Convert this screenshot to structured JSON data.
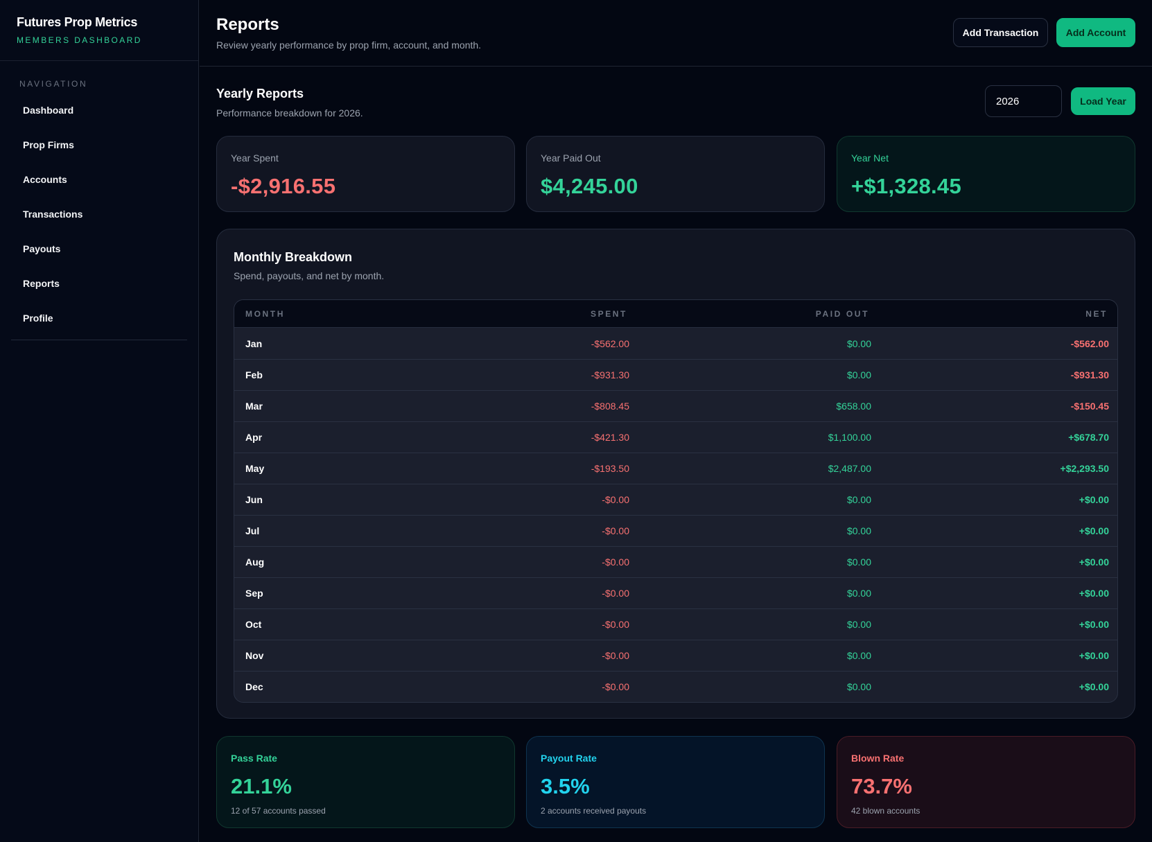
{
  "brand": {
    "title": "Futures Prop Metrics",
    "subtitle": "MEMBERS DASHBOARD"
  },
  "sidebar": {
    "heading": "NAVIGATION",
    "items": [
      {
        "label": "Dashboard"
      },
      {
        "label": "Prop Firms"
      },
      {
        "label": "Accounts"
      },
      {
        "label": "Transactions"
      },
      {
        "label": "Payouts"
      },
      {
        "label": "Reports"
      },
      {
        "label": "Profile"
      }
    ]
  },
  "header": {
    "title": "Reports",
    "subtitle": "Review yearly performance by prop firm, account, and month.",
    "add_transaction": "Add Transaction",
    "add_account": "Add Account"
  },
  "yearly": {
    "title": "Yearly Reports",
    "subtitle": "Performance breakdown for 2026.",
    "year_value": "2026",
    "load_button": "Load Year"
  },
  "stats": {
    "spent": {
      "label": "Year Spent",
      "value": "-$2,916.55"
    },
    "paid": {
      "label": "Year Paid Out",
      "value": "$4,245.00"
    },
    "net": {
      "label": "Year Net",
      "value": "+$1,328.45"
    }
  },
  "monthly": {
    "title": "Monthly Breakdown",
    "subtitle": "Spend, payouts, and net by month.",
    "columns": [
      "MONTH",
      "SPENT",
      "PAID OUT",
      "NET"
    ],
    "rows": [
      {
        "month": "Jan",
        "spent": "-$562.00",
        "paid": "$0.00",
        "net": "-$562.00",
        "net_positive": false
      },
      {
        "month": "Feb",
        "spent": "-$931.30",
        "paid": "$0.00",
        "net": "-$931.30",
        "net_positive": false
      },
      {
        "month": "Mar",
        "spent": "-$808.45",
        "paid": "$658.00",
        "net": "-$150.45",
        "net_positive": false
      },
      {
        "month": "Apr",
        "spent": "-$421.30",
        "paid": "$1,100.00",
        "net": "+$678.70",
        "net_positive": true
      },
      {
        "month": "May",
        "spent": "-$193.50",
        "paid": "$2,487.00",
        "net": "+$2,293.50",
        "net_positive": true
      },
      {
        "month": "Jun",
        "spent": "-$0.00",
        "paid": "$0.00",
        "net": "+$0.00",
        "net_positive": true
      },
      {
        "month": "Jul",
        "spent": "-$0.00",
        "paid": "$0.00",
        "net": "+$0.00",
        "net_positive": true
      },
      {
        "month": "Aug",
        "spent": "-$0.00",
        "paid": "$0.00",
        "net": "+$0.00",
        "net_positive": true
      },
      {
        "month": "Sep",
        "spent": "-$0.00",
        "paid": "$0.00",
        "net": "+$0.00",
        "net_positive": true
      },
      {
        "month": "Oct",
        "spent": "-$0.00",
        "paid": "$0.00",
        "net": "+$0.00",
        "net_positive": true
      },
      {
        "month": "Nov",
        "spent": "-$0.00",
        "paid": "$0.00",
        "net": "+$0.00",
        "net_positive": true
      },
      {
        "month": "Dec",
        "spent": "-$0.00",
        "paid": "$0.00",
        "net": "+$0.00",
        "net_positive": true
      }
    ]
  },
  "rates": {
    "pass": {
      "label": "Pass Rate",
      "value": "21.1%",
      "note": "12 of 57 accounts passed"
    },
    "payout": {
      "label": "Payout Rate",
      "value": "3.5%",
      "note": "2 accounts received payouts"
    },
    "blown": {
      "label": "Blown Rate",
      "value": "73.7%",
      "note": "42 blown accounts"
    }
  },
  "colors": {
    "positive": "#34d399",
    "negative": "#f87171",
    "accent": "#10b981",
    "info": "#22d3ee"
  }
}
